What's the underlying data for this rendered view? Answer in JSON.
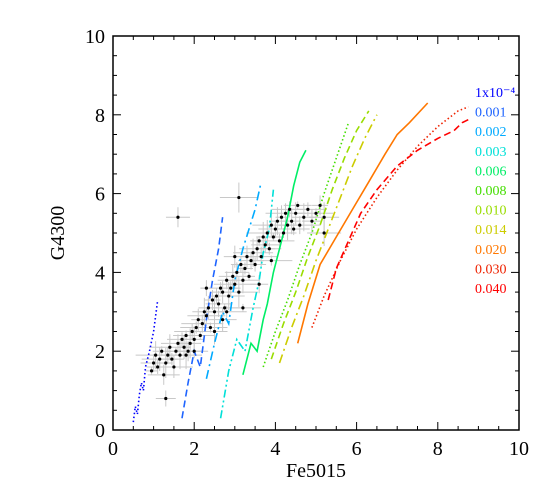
{
  "chart_data": {
    "type": "scatter",
    "title": "",
    "xlabel": "Fe5015",
    "ylabel": "G4300",
    "xlim": [
      0,
      10
    ],
    "ylim": [
      0,
      10
    ],
    "xticks": [
      "0",
      "2",
      "4",
      "6",
      "8",
      "10"
    ],
    "yticks": [
      "0",
      "2",
      "4",
      "6",
      "8",
      "10"
    ],
    "grid": false,
    "legend_placement": "right",
    "points": [
      [
        0.95,
        1.5
      ],
      [
        1.0,
        1.7
      ],
      [
        1.05,
        1.9
      ],
      [
        1.1,
        1.6
      ],
      [
        1.15,
        1.8
      ],
      [
        1.2,
        2.0
      ],
      [
        1.25,
        1.4
      ],
      [
        1.3,
        1.7
      ],
      [
        1.35,
        1.9
      ],
      [
        1.4,
        2.1
      ],
      [
        1.45,
        1.8
      ],
      [
        1.5,
        1.6
      ],
      [
        1.55,
        2.0
      ],
      [
        1.6,
        2.2
      ],
      [
        1.65,
        1.9
      ],
      [
        1.7,
        2.3
      ],
      [
        1.75,
        2.1
      ],
      [
        1.8,
        2.4
      ],
      [
        1.85,
        2.0
      ],
      [
        1.9,
        2.2
      ],
      [
        1.95,
        2.5
      ],
      [
        2.0,
        2.3
      ],
      [
        2.05,
        2.6
      ],
      [
        2.1,
        2.8
      ],
      [
        2.15,
        2.4
      ],
      [
        2.2,
        2.7
      ],
      [
        2.25,
        3.0
      ],
      [
        2.3,
        2.9
      ],
      [
        2.35,
        3.1
      ],
      [
        2.4,
        2.6
      ],
      [
        2.45,
        3.3
      ],
      [
        2.5,
        3.0
      ],
      [
        2.55,
        3.4
      ],
      [
        2.6,
        3.2
      ],
      [
        2.65,
        3.6
      ],
      [
        2.7,
        3.5
      ],
      [
        2.75,
        3.1
      ],
      [
        2.8,
        3.8
      ],
      [
        2.85,
        3.4
      ],
      [
        2.9,
        3.6
      ],
      [
        2.95,
        3.9
      ],
      [
        3.0,
        3.7
      ],
      [
        3.05,
        4.0
      ],
      [
        3.1,
        3.5
      ],
      [
        3.15,
        4.2
      ],
      [
        3.2,
        3.8
      ],
      [
        3.25,
        4.1
      ],
      [
        3.3,
        4.4
      ],
      [
        3.35,
        3.9
      ],
      [
        3.4,
        4.3
      ],
      [
        3.45,
        4.5
      ],
      [
        3.5,
        4.2
      ],
      [
        3.55,
        4.6
      ],
      [
        3.6,
        4.8
      ],
      [
        3.65,
        4.4
      ],
      [
        3.7,
        4.9
      ],
      [
        3.75,
        4.7
      ],
      [
        3.8,
        5.0
      ],
      [
        3.85,
        4.6
      ],
      [
        3.9,
        5.2
      ],
      [
        3.95,
        4.9
      ],
      [
        4.0,
        5.1
      ],
      [
        4.05,
        5.3
      ],
      [
        4.1,
        4.8
      ],
      [
        4.15,
        5.4
      ],
      [
        4.2,
        5.0
      ],
      [
        4.25,
        5.5
      ],
      [
        4.3,
        5.2
      ],
      [
        4.35,
        5.6
      ],
      [
        4.4,
        5.3
      ],
      [
        4.45,
        5.1
      ],
      [
        4.5,
        5.5
      ],
      [
        4.55,
        5.7
      ],
      [
        4.6,
        5.2
      ],
      [
        4.7,
        5.4
      ],
      [
        4.8,
        5.6
      ],
      [
        4.9,
        5.3
      ],
      [
        5.0,
        5.5
      ],
      [
        5.1,
        5.7
      ],
      [
        5.2,
        5.4
      ],
      [
        2.3,
        3.6
      ],
      [
        2.5,
        2.5
      ],
      [
        2.8,
        3.0
      ],
      [
        3.0,
        4.4
      ],
      [
        3.2,
        3.1
      ],
      [
        3.6,
        3.7
      ],
      [
        1.8,
        1.9
      ],
      [
        2.0,
        2.0
      ],
      [
        2.7,
        2.8
      ],
      [
        3.9,
        4.3
      ],
      [
        1.6,
        5.4
      ],
      [
        3.1,
        5.9
      ],
      [
        1.3,
        0.8
      ],
      [
        5.2,
        5.0
      ]
    ],
    "series": [
      {
        "name": "1x10⁻⁴",
        "color": "#0000ff",
        "dash": "1.5,2.5",
        "x": [
          0.5,
          0.55,
          0.6,
          0.65,
          0.7,
          0.75,
          0.8,
          0.9,
          1.0,
          1.1
        ],
        "y": [
          0.2,
          0.6,
          0.4,
          0.9,
          1.2,
          1.0,
          1.6,
          2.0,
          2.5,
          3.3
        ]
      },
      {
        "name": "0.001",
        "color": "#1e64ff",
        "dash": "7,4",
        "x": [
          1.7,
          1.85,
          2.0,
          2.15,
          2.3,
          2.45,
          2.6,
          2.7
        ],
        "y": [
          0.3,
          1.2,
          2.0,
          1.6,
          2.8,
          3.8,
          4.6,
          5.4
        ]
      },
      {
        "name": "0.002",
        "color": "#00aaff",
        "dash": "9,4,2,4",
        "x": [
          2.3,
          2.5,
          2.7,
          2.85,
          3.0,
          3.2,
          3.35,
          3.5,
          3.65
        ],
        "y": [
          1.3,
          2.2,
          3.0,
          2.7,
          3.8,
          4.6,
          5.1,
          5.6,
          6.3
        ]
      },
      {
        "name": "0.003",
        "color": "#00e0d8",
        "dash": "8,3,2,3,2,3",
        "x": [
          2.65,
          2.85,
          3.05,
          3.25,
          3.45,
          3.6,
          3.7,
          3.85,
          3.95
        ],
        "y": [
          0.3,
          1.5,
          2.3,
          2.0,
          3.1,
          3.8,
          4.5,
          5.1,
          6.1
        ]
      },
      {
        "name": "0.006",
        "color": "#00ee66",
        "dash": "",
        "x": [
          3.2,
          3.4,
          3.55,
          3.7,
          3.8,
          3.95,
          4.1,
          4.3,
          4.45,
          4.6,
          4.75
        ],
        "y": [
          1.4,
          2.2,
          2.0,
          2.8,
          3.2,
          4.0,
          4.6,
          5.4,
          6.2,
          6.8,
          7.1
        ]
      },
      {
        "name": "0.008",
        "color": "#44dd00",
        "dash": "1.5,2.5",
        "x": [
          3.7,
          4.0,
          4.3,
          4.6,
          4.9,
          5.2,
          5.5,
          5.8
        ],
        "y": [
          1.6,
          2.5,
          3.3,
          4.2,
          5.0,
          6.0,
          6.9,
          7.8
        ]
      },
      {
        "name": "0.010",
        "color": "#99dd00",
        "dash": "7,4",
        "x": [
          3.9,
          4.2,
          4.5,
          4.8,
          5.1,
          5.4,
          5.7,
          6.0,
          6.3
        ],
        "y": [
          1.8,
          2.7,
          3.5,
          4.4,
          5.2,
          6.1,
          6.9,
          7.6,
          8.1
        ]
      },
      {
        "name": "0.014",
        "color": "#cccc00",
        "dash": "9,4,2,4",
        "x": [
          4.1,
          4.4,
          4.7,
          5.0,
          5.3,
          5.6,
          5.9,
          6.2,
          6.5
        ],
        "y": [
          1.7,
          2.6,
          3.4,
          4.3,
          5.1,
          5.9,
          6.7,
          7.4,
          8.0
        ]
      },
      {
        "name": "0.020",
        "color": "#ff7700",
        "dash": "",
        "x": [
          4.55,
          4.8,
          5.1,
          5.5,
          5.9,
          6.3,
          6.7,
          7.0,
          7.3,
          7.75
        ],
        "y": [
          2.2,
          3.2,
          4.2,
          4.9,
          5.6,
          6.3,
          7.0,
          7.5,
          7.8,
          8.3
        ]
      },
      {
        "name": "0.030",
        "color": "#ee2200",
        "dash": "1.5,2.5",
        "x": [
          4.9,
          5.2,
          5.6,
          6.0,
          6.5,
          7.0,
          7.5,
          8.0,
          8.5,
          8.75
        ],
        "y": [
          2.6,
          3.4,
          4.3,
          5.1,
          5.9,
          6.6,
          7.2,
          7.7,
          8.1,
          8.2
        ]
      },
      {
        "name": "0.040",
        "color": "#ff0000",
        "dash": "7,4",
        "x": [
          5.3,
          5.5,
          5.8,
          6.1,
          6.5,
          7.0,
          7.5,
          8.0,
          8.4,
          8.6,
          8.8
        ],
        "y": [
          3.3,
          4.1,
          4.8,
          5.5,
          6.1,
          6.7,
          7.1,
          7.4,
          7.6,
          7.8,
          7.9
        ]
      }
    ]
  }
}
